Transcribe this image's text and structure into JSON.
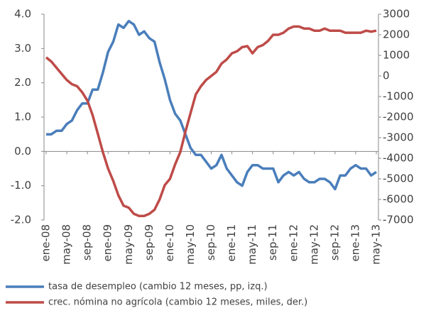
{
  "chart_data": {
    "type": "line",
    "categories": [
      "ene-08",
      null,
      null,
      null,
      "may-08",
      null,
      null,
      null,
      "sep-08",
      null,
      null,
      null,
      "ene-09",
      null,
      null,
      null,
      "may-09",
      null,
      null,
      null,
      "sep-09",
      null,
      null,
      null,
      "ene-10",
      null,
      null,
      null,
      "may-10",
      null,
      null,
      null,
      "sep-10",
      null,
      null,
      null,
      "ene-11",
      null,
      null,
      null,
      "may-11",
      null,
      null,
      null,
      "sep-11",
      null,
      null,
      null,
      "ene-12",
      null,
      null,
      null,
      "may-12",
      null,
      null,
      null,
      "sep-12",
      null,
      null,
      null,
      "ene-13",
      null,
      null,
      null,
      "may-13"
    ],
    "series": [
      {
        "name": "tasa de desempleo (cambio 12 meses, pp, izq.)",
        "color": "#4a7ebb",
        "values": [
          0.5,
          0.5,
          0.6,
          0.6,
          0.8,
          0.9,
          1.2,
          1.4,
          1.4,
          1.8,
          1.8,
          2.3,
          2.9,
          3.2,
          3.7,
          3.6,
          3.8,
          3.7,
          3.4,
          3.5,
          3.3,
          3.2,
          2.6,
          2.1,
          1.5,
          1.1,
          0.9,
          0.5,
          0.1,
          -0.1,
          -0.1,
          -0.3,
          -0.5,
          -0.4,
          -0.1,
          -0.5,
          -0.7,
          -0.9,
          -1.0,
          -0.6,
          -0.4,
          -0.4,
          -0.5,
          -0.5,
          -0.5,
          -0.9,
          -0.7,
          -0.6,
          -0.7,
          -0.6,
          -0.8,
          -0.9,
          -0.9,
          -0.8,
          -0.8,
          -0.9,
          -1.1,
          -0.7,
          -0.7,
          -0.5,
          -0.4,
          -0.5,
          -0.5,
          -0.7,
          -0.6
        ]
      },
      {
        "name": "crec. nómina no agrícola (cambio 12 meses, miles, der.)",
        "color": "#be4b48",
        "axis": "y2",
        "values": [
          900,
          700,
          400,
          100,
          -200,
          -400,
          -500,
          -800,
          -1200,
          -1900,
          -2800,
          -3700,
          -4500,
          -5100,
          -5800,
          -6300,
          -6400,
          -6700,
          -6800,
          -6800,
          -6700,
          -6500,
          -6000,
          -5300,
          -5000,
          -4300,
          -3700,
          -2700,
          -1800,
          -900,
          -500,
          -200,
          0,
          200,
          600,
          800,
          1100,
          1200,
          1400,
          1450,
          1100,
          1400,
          1500,
          1700,
          2000,
          2000,
          2100,
          2300,
          2400,
          2400,
          2300,
          2300,
          2200,
          2200,
          2300,
          2200,
          2200,
          2200,
          2100,
          2100,
          2100,
          2100,
          2200,
          2150,
          2200
        ]
      }
    ],
    "ylim": [
      -2,
      4
    ],
    "yticks": [
      {
        "value": -2,
        "label": "-2.0"
      },
      {
        "value": -1,
        "label": "-1.0"
      },
      {
        "value": 0,
        "label": "0.0"
      },
      {
        "value": 1,
        "label": "1.0"
      },
      {
        "value": 2,
        "label": "2.0"
      },
      {
        "value": 3,
        "label": "3.0"
      },
      {
        "value": 4,
        "label": "4.0"
      }
    ],
    "y2lim": [
      -7000,
      3000
    ],
    "y2ticks": [
      -7000,
      -6000,
      -5000,
      -4000,
      -3000,
      -2000,
      -1000,
      0,
      1000,
      2000,
      3000
    ],
    "grid": false
  }
}
